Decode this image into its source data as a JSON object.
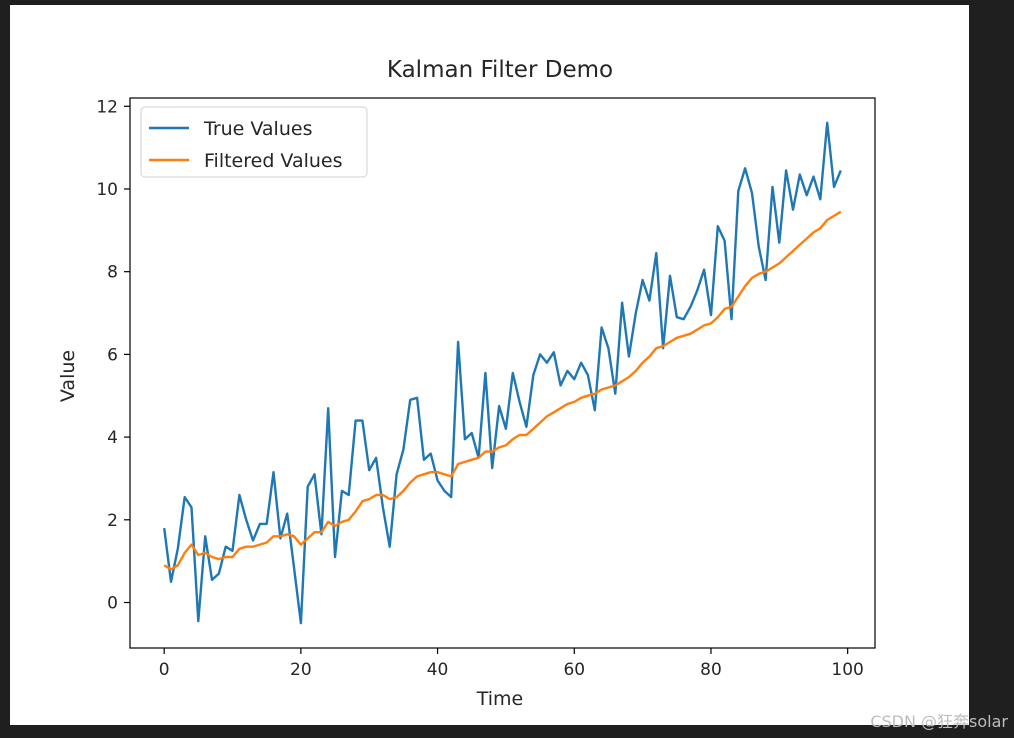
{
  "watermark": "CSDN @狂奔solar",
  "chart_data": {
    "type": "line",
    "title": "Kalman Filter Demo",
    "xlabel": "Time",
    "ylabel": "Value",
    "xlim": [
      -5,
      104
    ],
    "ylim": [
      -1.1,
      12.2
    ],
    "xticks": [
      0,
      20,
      40,
      60,
      80,
      100
    ],
    "yticks": [
      0,
      2,
      4,
      6,
      8,
      10,
      12
    ],
    "grid": false,
    "legend_position": "top-left",
    "series": [
      {
        "name": "True Values",
        "color": "#1f77b4",
        "x": [
          0,
          1,
          2,
          3,
          4,
          5,
          6,
          7,
          8,
          9,
          10,
          11,
          12,
          13,
          14,
          15,
          16,
          17,
          18,
          19,
          20,
          21,
          22,
          23,
          24,
          25,
          26,
          27,
          28,
          29,
          30,
          31,
          32,
          33,
          34,
          35,
          36,
          37,
          38,
          39,
          40,
          41,
          42,
          43,
          44,
          45,
          46,
          47,
          48,
          49,
          50,
          51,
          52,
          53,
          54,
          55,
          56,
          57,
          58,
          59,
          60,
          61,
          62,
          63,
          64,
          65,
          66,
          67,
          68,
          69,
          70,
          71,
          72,
          73,
          74,
          75,
          76,
          77,
          78,
          79,
          80,
          81,
          82,
          83,
          84,
          85,
          86,
          87,
          88,
          89,
          90,
          91,
          92,
          93,
          94,
          95,
          96,
          97,
          98,
          99
        ],
        "values": [
          1.8,
          0.5,
          1.3,
          2.55,
          2.3,
          -0.45,
          1.6,
          0.55,
          0.7,
          1.35,
          1.25,
          2.6,
          2.0,
          1.5,
          1.9,
          1.9,
          3.15,
          1.55,
          2.15,
          0.85,
          -0.5,
          2.8,
          3.1,
          1.65,
          4.7,
          1.1,
          2.7,
          2.6,
          4.4,
          4.4,
          3.2,
          3.5,
          2.3,
          1.35,
          3.1,
          3.7,
          4.9,
          4.95,
          3.45,
          3.6,
          2.95,
          2.7,
          2.55,
          6.3,
          3.95,
          4.1,
          3.5,
          5.55,
          3.25,
          4.75,
          4.2,
          5.55,
          4.85,
          4.25,
          5.5,
          6.0,
          5.8,
          6.05,
          5.25,
          5.6,
          5.4,
          5.8,
          5.5,
          4.65,
          6.65,
          6.15,
          5.05,
          7.25,
          5.95,
          7.0,
          7.8,
          7.3,
          8.45,
          6.15,
          7.9,
          6.9,
          6.85,
          7.15,
          7.55,
          8.05,
          6.95,
          9.1,
          8.75,
          6.85,
          9.95,
          10.5,
          9.9,
          8.6,
          7.8,
          10.05,
          8.7,
          10.45,
          9.5,
          10.35,
          9.85,
          10.3,
          9.75,
          11.6,
          10.05,
          10.45
        ]
      },
      {
        "name": "Filtered Values",
        "color": "#ff7f0e",
        "x": [
          0,
          1,
          2,
          3,
          4,
          5,
          6,
          7,
          8,
          9,
          10,
          11,
          12,
          13,
          14,
          15,
          16,
          17,
          18,
          19,
          20,
          21,
          22,
          23,
          24,
          25,
          26,
          27,
          28,
          29,
          30,
          31,
          32,
          33,
          34,
          35,
          36,
          37,
          38,
          39,
          40,
          41,
          42,
          43,
          44,
          45,
          46,
          47,
          48,
          49,
          50,
          51,
          52,
          53,
          54,
          55,
          56,
          57,
          58,
          59,
          60,
          61,
          62,
          63,
          64,
          65,
          66,
          67,
          68,
          69,
          70,
          71,
          72,
          73,
          74,
          75,
          76,
          77,
          78,
          79,
          80,
          81,
          82,
          83,
          84,
          85,
          86,
          87,
          88,
          89,
          90,
          91,
          92,
          93,
          94,
          95,
          96,
          97,
          98,
          99
        ],
        "values": [
          0.9,
          0.8,
          0.9,
          1.2,
          1.4,
          1.15,
          1.2,
          1.1,
          1.05,
          1.1,
          1.1,
          1.3,
          1.35,
          1.35,
          1.4,
          1.45,
          1.6,
          1.6,
          1.65,
          1.6,
          1.4,
          1.55,
          1.7,
          1.7,
          1.95,
          1.85,
          1.95,
          2.0,
          2.2,
          2.45,
          2.5,
          2.6,
          2.6,
          2.5,
          2.55,
          2.7,
          2.9,
          3.05,
          3.1,
          3.15,
          3.15,
          3.1,
          3.05,
          3.35,
          3.4,
          3.45,
          3.5,
          3.65,
          3.65,
          3.75,
          3.8,
          3.95,
          4.05,
          4.05,
          4.2,
          4.35,
          4.5,
          4.6,
          4.7,
          4.8,
          4.85,
          4.95,
          5.0,
          5.05,
          5.15,
          5.2,
          5.25,
          5.35,
          5.45,
          5.6,
          5.8,
          5.95,
          6.15,
          6.2,
          6.3,
          6.4,
          6.45,
          6.5,
          6.6,
          6.7,
          6.75,
          6.9,
          7.1,
          7.15,
          7.4,
          7.65,
          7.85,
          7.95,
          8.0,
          8.1,
          8.2,
          8.35,
          8.5,
          8.65,
          8.8,
          8.95,
          9.05,
          9.25,
          9.35,
          9.45
        ]
      }
    ]
  }
}
